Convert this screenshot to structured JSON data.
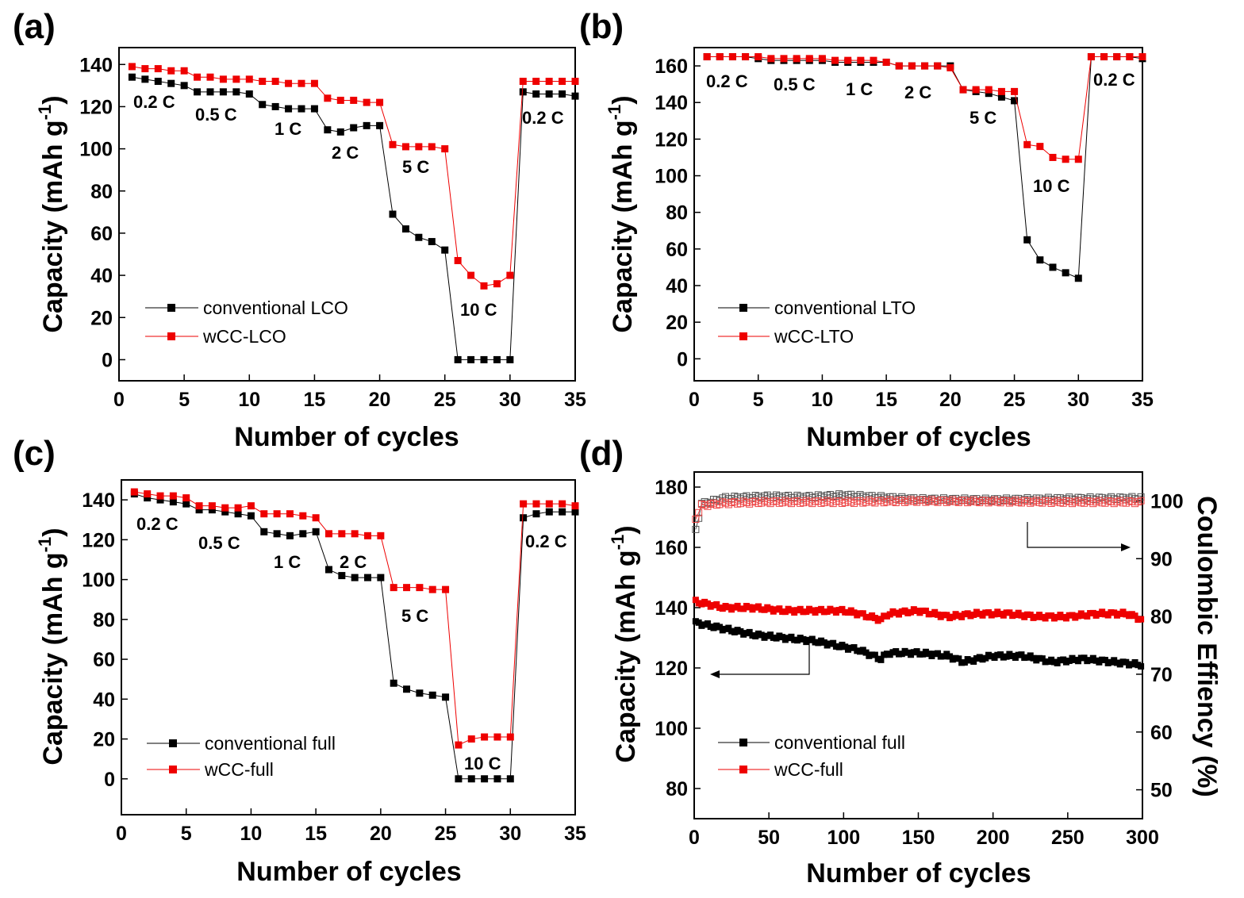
{
  "figure": {
    "colors": {
      "conventional": "#000000",
      "wcc": "#ee0000",
      "ce_black": "#555555",
      "ce_red": "#ee4444"
    },
    "panels": [
      {
        "label": "(a)",
        "xlabel": "Number of cycles",
        "ylabel": "Capacity (mAh g",
        "ylabel_sup": "-1",
        "ylabel_end": ")",
        "xticks": [
          "0",
          "5",
          "10",
          "15",
          "20",
          "25",
          "30",
          "35"
        ],
        "yticks": [
          "0",
          "20",
          "40",
          "60",
          "80",
          "100",
          "120",
          "140"
        ],
        "legend": [
          "conventional LCO",
          "wCC-LCO"
        ],
        "rates": [
          "0.2 C",
          "0.5 C",
          "1 C",
          "2 C",
          "5 C",
          "10 C",
          "0.2 C"
        ]
      },
      {
        "label": "(b)",
        "xlabel": "Number of cycles",
        "ylabel": "Capacity (mAh g",
        "ylabel_sup": "-1",
        "ylabel_end": ")",
        "xticks": [
          "0",
          "5",
          "10",
          "15",
          "20",
          "25",
          "30",
          "35"
        ],
        "yticks": [
          "0",
          "20",
          "40",
          "60",
          "80",
          "100",
          "120",
          "140",
          "160"
        ],
        "legend": [
          "conventional LTO",
          "wCC-LTO"
        ],
        "rates": [
          "0.2 C",
          "0.5 C",
          "1 C",
          "2 C",
          "5 C",
          "10 C",
          "0.2 C"
        ]
      },
      {
        "label": "(c)",
        "xlabel": "Number of cycles",
        "ylabel": "Capacity (mAh g",
        "ylabel_sup": "-1",
        "ylabel_end": ")",
        "xticks": [
          "0",
          "5",
          "10",
          "15",
          "20",
          "25",
          "30",
          "35"
        ],
        "yticks": [
          "0",
          "20",
          "40",
          "60",
          "80",
          "100",
          "120",
          "140"
        ],
        "legend": [
          "conventional full",
          "wCC-full"
        ],
        "rates": [
          "0.2 C",
          "0.5 C",
          "1 C",
          "2 C",
          "5 C",
          "10 C",
          "0.2 C"
        ]
      },
      {
        "label": "(d)",
        "xlabel": "Number of cycles",
        "ylabel": "Capacity (mAh g",
        "ylabel_sup": "-1",
        "ylabel_end": ")",
        "y2label": "Coulombic Effiency (%)",
        "xticks": [
          "0",
          "50",
          "100",
          "150",
          "200",
          "250",
          "300"
        ],
        "yticks": [
          "80",
          "100",
          "120",
          "140",
          "160",
          "180"
        ],
        "y2ticks": [
          "50",
          "60",
          "70",
          "80",
          "90",
          "100"
        ],
        "legend": [
          "conventional full",
          "wCC-full"
        ]
      }
    ]
  },
  "chart_data": [
    {
      "type": "line",
      "xlabel": "Number of cycles",
      "ylabel": "Capacity (mAh g-1)",
      "xlim": [
        0,
        35
      ],
      "ylim": [
        -10,
        148
      ],
      "x": [
        1,
        2,
        3,
        4,
        5,
        6,
        7,
        8,
        9,
        10,
        11,
        12,
        13,
        14,
        15,
        16,
        17,
        18,
        19,
        20,
        21,
        22,
        23,
        24,
        25,
        26,
        27,
        28,
        29,
        30,
        31,
        32,
        33,
        34,
        35
      ],
      "series": [
        {
          "name": "conventional LCO",
          "values": [
            134,
            133,
            132,
            131,
            130,
            127,
            127,
            127,
            127,
            126,
            121,
            120,
            119,
            119,
            119,
            109,
            108,
            110,
            111,
            111,
            69,
            62,
            58,
            56,
            52,
            0,
            0,
            0,
            0,
            0,
            127,
            126,
            126,
            126,
            125
          ]
        },
        {
          "name": "wCC-LCO",
          "values": [
            139,
            138,
            138,
            137,
            137,
            134,
            134,
            133,
            133,
            133,
            132,
            132,
            131,
            131,
            131,
            124,
            123,
            123,
            122,
            122,
            102,
            101,
            101,
            101,
            100,
            47,
            40,
            35,
            36,
            40,
            132,
            132,
            132,
            132,
            132
          ]
        }
      ],
      "annotations": [
        "0.2 C",
        "0.5 C",
        "1 C",
        "2 C",
        "5 C",
        "10 C",
        "0.2 C"
      ]
    },
    {
      "type": "line",
      "xlabel": "Number of cycles",
      "ylabel": "Capacity (mAh g-1)",
      "xlim": [
        0,
        35
      ],
      "ylim": [
        -12,
        170
      ],
      "x": [
        1,
        2,
        3,
        4,
        5,
        6,
        7,
        8,
        9,
        10,
        11,
        12,
        13,
        14,
        15,
        16,
        17,
        18,
        19,
        20,
        21,
        22,
        23,
        24,
        25,
        26,
        27,
        28,
        29,
        30,
        31,
        32,
        33,
        34,
        35
      ],
      "series": [
        {
          "name": "conventional LTO",
          "values": [
            165,
            165,
            165,
            165,
            164,
            163,
            163,
            163,
            163,
            163,
            162,
            162,
            162,
            162,
            162,
            160,
            160,
            160,
            160,
            160,
            147,
            146,
            145,
            143,
            141,
            65,
            54,
            50,
            47,
            44,
            165,
            165,
            165,
            165,
            164
          ]
        },
        {
          "name": "wCC-LTO",
          "values": [
            165,
            165,
            165,
            165,
            165,
            164,
            164,
            164,
            164,
            164,
            163,
            163,
            163,
            163,
            162,
            160,
            160,
            160,
            160,
            159,
            147,
            147,
            147,
            146,
            146,
            117,
            116,
            110,
            109,
            109,
            165,
            165,
            165,
            165,
            165
          ]
        }
      ],
      "annotations": [
        "0.2 C",
        "0.5 C",
        "1 C",
        "2 C",
        "5 C",
        "10 C",
        "0.2 C"
      ]
    },
    {
      "type": "line",
      "xlabel": "Number of cycles",
      "ylabel": "Capacity (mAh g-1)",
      "xlim": [
        0,
        35
      ],
      "ylim": [
        -18,
        150
      ],
      "x": [
        1,
        2,
        3,
        4,
        5,
        6,
        7,
        8,
        9,
        10,
        11,
        12,
        13,
        14,
        15,
        16,
        17,
        18,
        19,
        20,
        21,
        22,
        23,
        24,
        25,
        26,
        27,
        28,
        29,
        30,
        31,
        32,
        33,
        34,
        35
      ],
      "series": [
        {
          "name": "conventional full",
          "values": [
            143,
            141,
            140,
            139,
            138,
            135,
            135,
            134,
            133,
            132,
            124,
            123,
            122,
            123,
            124,
            105,
            102,
            101,
            101,
            101,
            48,
            45,
            43,
            42,
            41,
            0,
            0,
            0,
            0,
            0,
            131,
            133,
            134,
            134,
            134
          ]
        },
        {
          "name": "wCC-full",
          "values": [
            144,
            143,
            142,
            142,
            141,
            137,
            137,
            136,
            136,
            137,
            133,
            133,
            133,
            132,
            131,
            123,
            123,
            123,
            122,
            122,
            96,
            96,
            96,
            95,
            95,
            17,
            20,
            21,
            21,
            21,
            138,
            138,
            138,
            138,
            137
          ]
        }
      ],
      "annotations": [
        "0.2 C",
        "0.5 C",
        "1 C",
        "2 C",
        "5 C",
        "10 C",
        "0.2 C"
      ]
    },
    {
      "type": "line",
      "xlabel": "Number of cycles",
      "ylabel": "Capacity (mAh g-1)",
      "y2label": "Coulombic Effiency (%)",
      "xlim": [
        0,
        300
      ],
      "ylim": [
        70,
        185
      ],
      "y2lim": [
        45,
        105
      ],
      "series": [
        {
          "name": "conventional full",
          "axis": "left",
          "points": [
            [
              1,
              135
            ],
            [
              20,
              133
            ],
            [
              40,
              131
            ],
            [
              60,
              130
            ],
            [
              80,
              129
            ],
            [
              100,
              127
            ],
            [
              110,
              126
            ],
            [
              125,
              123
            ],
            [
              130,
              125
            ],
            [
              150,
              125
            ],
            [
              170,
              124
            ],
            [
              180,
              122
            ],
            [
              200,
              124
            ],
            [
              220,
              124
            ],
            [
              240,
              122
            ],
            [
              260,
              123
            ],
            [
              280,
              122
            ],
            [
              300,
              121
            ]
          ]
        },
        {
          "name": "wCC-full",
          "axis": "left",
          "points": [
            [
              1,
              142
            ],
            [
              20,
              140
            ],
            [
              40,
              140
            ],
            [
              60,
              139
            ],
            [
              80,
              139
            ],
            [
              100,
              139
            ],
            [
              110,
              138
            ],
            [
              125,
              136
            ],
            [
              130,
              138
            ],
            [
              150,
              139
            ],
            [
              170,
              137
            ],
            [
              190,
              138
            ],
            [
              210,
              138
            ],
            [
              230,
              137
            ],
            [
              250,
              137
            ],
            [
              270,
              138
            ],
            [
              290,
              138
            ],
            [
              300,
              136
            ]
          ]
        },
        {
          "name": "",
          "axis": "right",
          "points": [
            [
              1,
              95
            ],
            [
              5,
              99.5
            ],
            [
              20,
              100.5
            ],
            [
              50,
              100.8
            ],
            [
              75,
              100.7
            ],
            [
              100,
              101
            ],
            [
              150,
              100.3
            ],
            [
              200,
              100.2
            ],
            [
              250,
              100.4
            ],
            [
              300,
              100.5
            ]
          ]
        },
        {
          "name": "",
          "axis": "right",
          "points": [
            [
              1,
              97
            ],
            [
              5,
              99.2
            ],
            [
              20,
              99.6
            ],
            [
              50,
              99.8
            ],
            [
              100,
              99.8
            ],
            [
              150,
              100
            ],
            [
              200,
              99.9
            ],
            [
              250,
              99.8
            ],
            [
              300,
              99.8
            ]
          ]
        }
      ]
    }
  ]
}
